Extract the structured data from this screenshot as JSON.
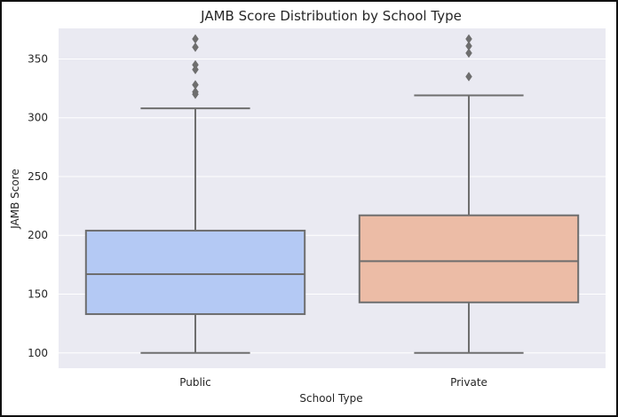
{
  "chart_data": {
    "type": "box",
    "title": "JAMB Score Distribution by School Type",
    "xlabel": "School Type",
    "ylabel": "JAMB Score",
    "ylim": [
      87,
      376
    ],
    "yticks": [
      100,
      150,
      200,
      250,
      300,
      350
    ],
    "categories": [
      "Public",
      "Private"
    ],
    "grid": true,
    "series": [
      {
        "category": "Public",
        "color": "#b4c9f4",
        "whisker_low": 100,
        "q1": 133,
        "median": 167,
        "q3": 204,
        "whisker_high": 308,
        "outliers": [
          320,
          322,
          328,
          341,
          345,
          360,
          367
        ]
      },
      {
        "category": "Private",
        "color": "#ecbca6",
        "whisker_low": 100,
        "q1": 143,
        "median": 178,
        "q3": 217,
        "whisker_high": 319,
        "outliers": [
          335,
          355,
          361,
          367
        ]
      }
    ],
    "colors": {
      "plot_background": "#eaeaf2",
      "grid": "#ffffff",
      "box_edge": "#6e6e6e"
    }
  }
}
